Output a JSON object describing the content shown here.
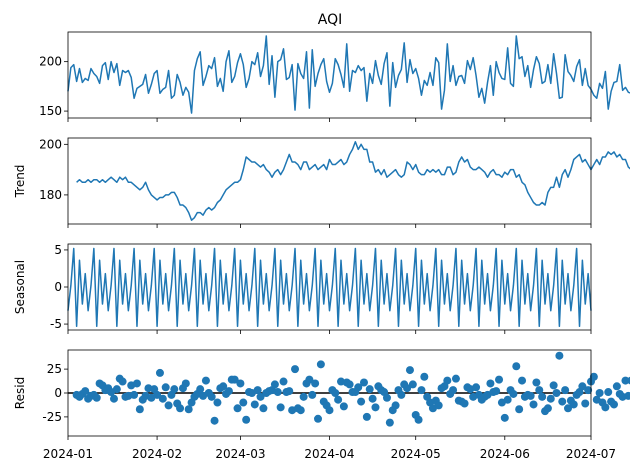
{
  "figure": {
    "title": "AQI"
  },
  "colors": {
    "series": "#1f77b4",
    "axis": "#000000",
    "background": "#ffffff"
  },
  "x_tick_labels": [
    "2024-01",
    "2024-02",
    "2024-03",
    "2024-04",
    "2024-05",
    "2024-06",
    "2024-07"
  ],
  "chart_data": [
    {
      "type": "line",
      "title": "AQI",
      "ylabel": "",
      "xlim": [
        "2024-01-01",
        "2024-07-01"
      ],
      "ylim": [
        143,
        230
      ],
      "yticks": [
        150,
        200
      ],
      "x_start": "2024-01-01",
      "x_step_days": 1,
      "values": [
        170,
        194,
        197,
        180,
        193,
        179,
        183,
        181,
        193,
        188,
        185,
        178,
        196,
        199,
        182,
        200,
        189,
        198,
        176,
        191,
        189,
        191,
        184,
        163,
        173,
        175,
        177,
        187,
        168,
        177,
        188,
        191,
        168,
        172,
        174,
        191,
        163,
        166,
        187,
        179,
        166,
        174,
        169,
        148,
        191,
        203,
        210,
        176,
        185,
        196,
        193,
        204,
        175,
        183,
        170,
        200,
        211,
        179,
        185,
        199,
        208,
        197,
        174,
        183,
        200,
        197,
        209,
        185,
        196,
        226,
        177,
        206,
        164,
        200,
        202,
        213,
        182,
        184,
        197,
        151,
        198,
        188,
        183,
        210,
        153,
        212,
        175,
        188,
        197,
        203,
        180,
        169,
        178,
        203,
        197,
        187,
        174,
        218,
        170,
        191,
        189,
        196,
        191,
        194,
        160,
        188,
        178,
        201,
        186,
        177,
        198,
        209,
        155,
        199,
        174,
        186,
        192,
        219,
        179,
        202,
        188,
        193,
        183,
        166,
        181,
        176,
        189,
        176,
        204,
        199,
        152,
        171,
        218,
        180,
        196,
        176,
        185,
        186,
        178,
        201,
        192,
        204,
        186,
        164,
        173,
        158,
        179,
        196,
        166,
        200,
        189,
        183,
        182,
        214,
        178,
        175,
        226,
        203,
        205,
        185,
        196,
        174,
        192,
        205,
        198,
        178,
        180,
        197,
        178,
        208,
        188,
        163,
        164,
        207,
        190,
        186,
        180,
        195,
        202,
        176,
        193,
        176,
        172,
        166,
        163,
        178,
        173,
        190,
        152,
        170,
        179,
        180,
        197,
        171,
        174,
        169,
        168,
        157,
        174,
        185,
        145,
        163,
        191,
        168,
        183,
        207
      ]
    },
    {
      "type": "line",
      "title": "",
      "ylabel": "Trend",
      "xlim": [
        "2024-01-01",
        "2024-07-01"
      ],
      "ylim": [
        168.5,
        202.5
      ],
      "yticks": [
        180,
        200
      ],
      "x_start": "2024-01-04",
      "x_step_days": 1,
      "values": [
        185,
        186,
        185,
        185,
        186,
        185,
        186,
        186,
        185,
        186,
        185,
        186,
        187,
        186,
        185,
        187,
        186,
        187,
        185,
        185,
        184,
        183,
        182,
        183,
        185,
        182,
        180,
        179,
        178,
        179,
        179,
        180,
        180,
        181,
        181,
        179,
        176,
        176,
        175,
        173,
        170,
        171,
        173,
        173,
        172,
        174,
        175,
        174,
        175,
        177,
        178,
        180,
        182,
        183,
        184,
        185,
        185,
        186,
        190,
        195,
        194,
        193,
        193,
        192,
        191,
        192,
        190,
        189,
        187,
        189,
        190,
        188,
        190,
        193,
        196,
        193,
        193,
        192,
        190,
        193,
        193,
        190,
        191,
        192,
        190,
        191,
        192,
        190,
        194,
        192,
        192,
        193,
        194,
        192,
        193,
        196,
        198,
        201,
        198,
        200,
        198,
        198,
        193,
        193,
        189,
        190,
        188,
        190,
        187,
        188,
        189,
        190,
        188,
        187,
        188,
        193,
        192,
        190,
        192,
        189,
        188,
        188,
        190,
        189,
        190,
        189,
        190,
        188,
        188,
        191,
        191,
        188,
        189,
        193,
        195,
        193,
        194,
        191,
        190,
        190,
        191,
        190,
        189,
        187,
        189,
        190,
        188,
        188,
        187,
        189,
        188,
        190,
        190,
        187,
        188,
        185,
        184,
        181,
        179,
        177,
        176,
        176,
        177,
        176,
        181,
        183,
        183,
        187,
        183,
        188,
        190,
        187,
        190,
        194,
        195,
        196,
        193,
        194,
        192,
        190,
        192,
        194,
        192,
        195,
        195,
        197,
        196,
        197,
        195,
        196,
        194,
        194,
        191,
        190,
        187,
        188,
        187,
        187,
        187,
        185,
        185,
        183,
        181,
        180,
        181,
        178,
        173,
        170,
        174,
        171,
        173,
        172,
        172,
        173,
        171,
        174,
        176,
        171,
        170,
        174,
        171,
        169,
        174,
        172,
        172,
        173
      ]
    },
    {
      "type": "line",
      "title": "",
      "ylabel": "Seasonal",
      "xlim": [
        "2024-01-01",
        "2024-07-01"
      ],
      "ylim": [
        -5.8,
        5.8
      ],
      "yticks": [
        -5,
        0,
        5
      ],
      "x_start": "2024-01-01",
      "x_step_days": 1,
      "period_pattern": [
        -3.2,
        0.2,
        5.2,
        -5.3,
        3.6,
        -2.3,
        1.8
      ],
      "values": []
    },
    {
      "type": "scatter",
      "title": "",
      "ylabel": "Resid",
      "xlim": [
        "2024-01-01",
        "2024-07-01"
      ],
      "ylim": [
        -45,
        45
      ],
      "yticks": [
        -25,
        0,
        25
      ],
      "baseline": 0,
      "x_start": "2024-01-04",
      "x_step_days": 1,
      "values": [
        -2,
        -4,
        -1,
        2,
        -6,
        -3,
        -2,
        -5,
        10,
        8,
        3,
        5,
        1,
        -6,
        4,
        15,
        12,
        -4,
        -3,
        8,
        -2,
        10,
        -17,
        -7,
        -3,
        5,
        -5,
        4,
        -2,
        21,
        -6,
        6,
        -13,
        -2,
        4,
        -11,
        -16,
        5,
        10,
        -17,
        -10,
        -4,
        -1,
        4,
        -3,
        13,
        0,
        -4,
        -29,
        -10,
        5,
        7,
        -1,
        2,
        14,
        14,
        -16,
        10,
        -10,
        -28,
        1,
        0,
        -12,
        3,
        -4,
        -16,
        0,
        2,
        3,
        9,
        1,
        -15,
        12,
        1,
        2,
        -18,
        25,
        -16,
        -18,
        -4,
        10,
        14,
        -2,
        10,
        -27,
        30,
        -9,
        -13,
        -18,
        3,
        0,
        -7,
        12,
        -14,
        11,
        9,
        1,
        1,
        6,
        -9,
        11,
        -25,
        4,
        -6,
        -15,
        7,
        3,
        1,
        -5,
        -31,
        -18,
        -13,
        3,
        -2,
        9,
        5,
        24,
        9,
        -23,
        -28,
        3,
        17,
        -4,
        -10,
        -16,
        -8,
        -13,
        5,
        7,
        13,
        -1,
        3,
        15,
        -8,
        -9,
        -11,
        6,
        4,
        -4,
        6,
        -2,
        -7,
        -4,
        -2,
        10,
        1,
        2,
        14,
        -10,
        -26,
        -7,
        3,
        -1,
        28,
        -17,
        13,
        -4,
        -2,
        -3,
        -12,
        11,
        3,
        -4,
        -19,
        -16,
        -6,
        8,
        0,
        39,
        -9,
        3,
        -16,
        -8,
        -12,
        -2,
        1,
        7,
        -11,
        3,
        12,
        17,
        -7,
        0,
        -10,
        -15,
        1,
        -9,
        -12,
        7,
        -1,
        -4,
        13,
        -3,
        13,
        -12,
        2,
        12,
        -1,
        -23,
        -9,
        9,
        0,
        -3,
        -5,
        6,
        19,
        -27,
        -3,
        21,
        -4,
        -8,
        -12,
        10,
        -5,
        28,
        -26,
        -3,
        12
      ]
    }
  ]
}
